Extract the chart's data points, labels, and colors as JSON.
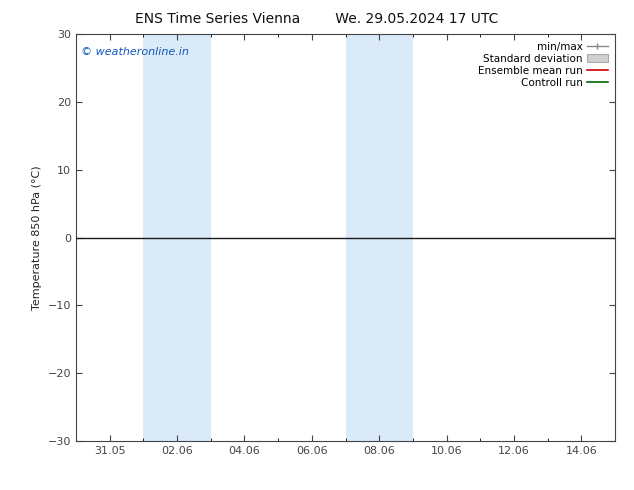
{
  "title_left": "ENS Time Series Vienna",
  "title_right": "We. 29.05.2024 17 UTC",
  "ylabel": "Temperature 850 hPa (°C)",
  "watermark": "© weatheronline.in",
  "ylim": [
    -30,
    30
  ],
  "yticks": [
    -30,
    -20,
    -10,
    0,
    10,
    20,
    30
  ],
  "x_tick_labels": [
    "31.05",
    "02.06",
    "04.06",
    "06.06",
    "08.06",
    "10.06",
    "12.06",
    "14.06"
  ],
  "x_tick_positions": [
    1,
    3,
    5,
    7,
    9,
    11,
    13,
    15
  ],
  "xlim": [
    0,
    16
  ],
  "shaded_bands": [
    {
      "x_start": 2,
      "x_end": 4,
      "color": "#daeaf8"
    },
    {
      "x_start": 8,
      "x_end": 10,
      "color": "#daeaf8"
    }
  ],
  "hline_y": 0,
  "hline_color": "#1a1a1a",
  "background_color": "#ffffff",
  "plot_bg_color": "#ffffff",
  "spine_color": "#444444",
  "tick_color": "#444444",
  "title_fontsize": 10,
  "label_fontsize": 8,
  "tick_fontsize": 8,
  "watermark_fontsize": 8,
  "watermark_color": "#1155bb",
  "legend_fontsize": 7.5
}
